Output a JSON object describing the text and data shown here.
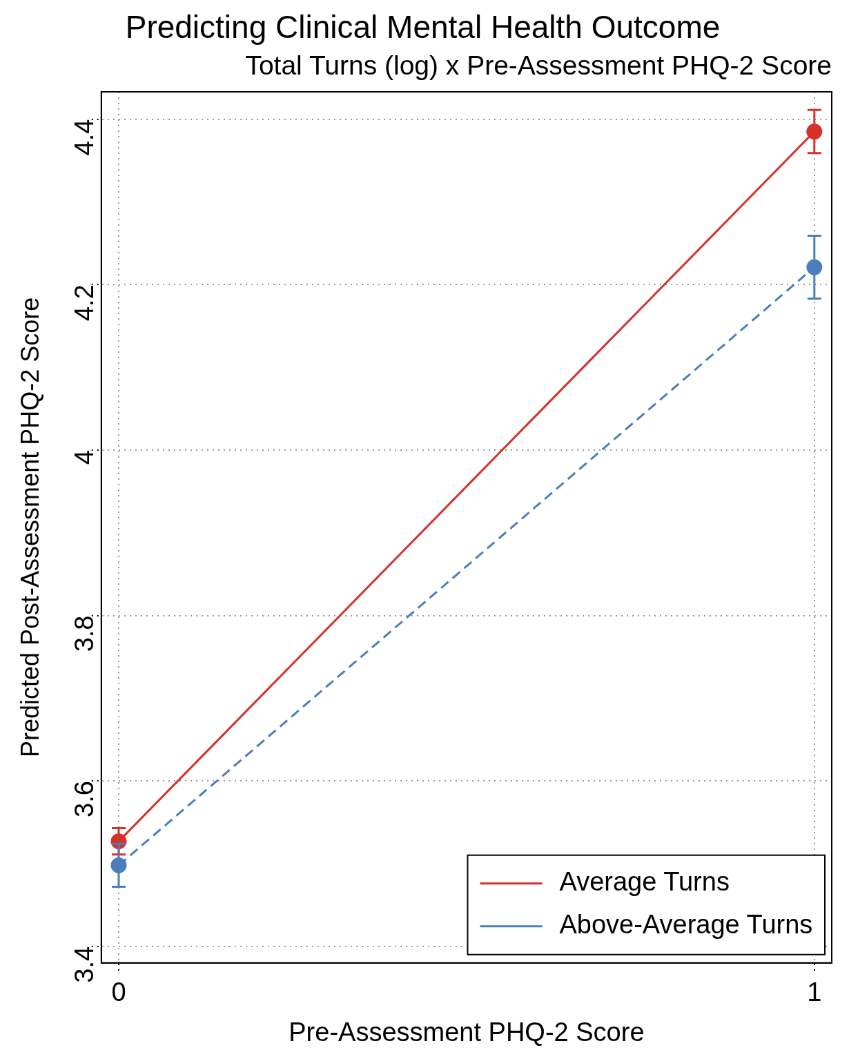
{
  "chart_data": {
    "type": "line",
    "title": "Predicting Clinical Mental Health Outcome",
    "subtitle": "Total Turns (log) x Pre-Assessment PHQ-2 Score",
    "xlabel": "Pre-Assessment PHQ-2 Score",
    "ylabel": "Predicted Post-Assessment PHQ-2 Score",
    "x": [
      0,
      1
    ],
    "series": [
      {
        "name": "Average Turns",
        "color": "#d7302a",
        "values": [
          3.527,
          4.385
        ],
        "errors": [
          0.016,
          0.026
        ],
        "line_style": "solid"
      },
      {
        "name": "Above-Average Turns",
        "color": "#4a7fbc",
        "values": [
          3.498,
          4.221
        ],
        "errors": [
          0.026,
          0.038
        ],
        "line_style": "dashed"
      }
    ],
    "xlim": [
      -0.025,
      1.025
    ],
    "xticks": [
      0,
      1
    ],
    "ylim": [
      3.38,
      4.433
    ],
    "yticks": [
      3.4,
      3.6,
      3.8,
      4,
      4.2,
      4.4
    ],
    "grid": true,
    "legend": "bottom right",
    "marker": "circle"
  }
}
